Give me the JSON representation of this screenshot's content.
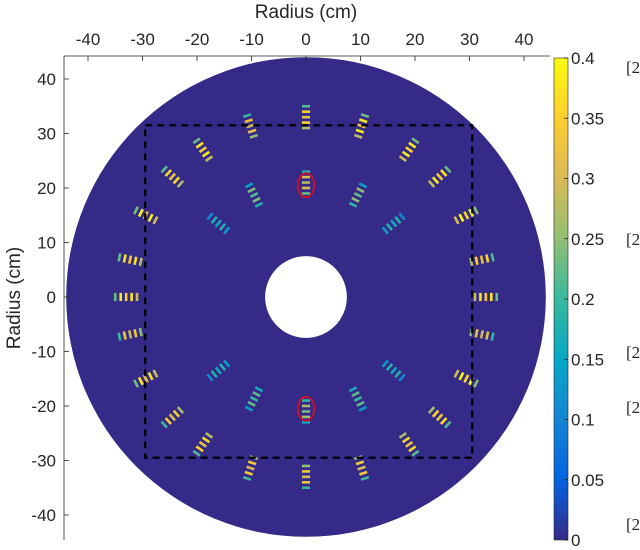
{
  "chart_data": {
    "type": "heatmap",
    "title": "",
    "xlabel": "Radius (cm)",
    "ylabel": "Radius (cm)",
    "xlim": [
      -44,
      44
    ],
    "ylim": [
      -45,
      45
    ],
    "x_ticks": [
      -40,
      -30,
      -20,
      -10,
      0,
      10,
      20,
      30,
      40
    ],
    "x_tick_labels": [
      "-40",
      "-30",
      "-20",
      "-10",
      "0",
      "10",
      "20",
      "30",
      "40"
    ],
    "y_ticks": [
      40,
      30,
      20,
      10,
      0,
      -10,
      -20,
      -30,
      -40
    ],
    "y_tick_labels": [
      "40",
      "30",
      "20",
      "10",
      "0",
      "-10",
      "-20",
      "-30",
      "-40"
    ],
    "x_axis_location": "top",
    "grid": false,
    "disk": {
      "outer_radius_cm": 44,
      "inner_radius_cm": 7.5,
      "background_value": 0
    },
    "dashed_square": {
      "x": [
        -29.5,
        30.5
      ],
      "y": [
        -29.5,
        31.5
      ]
    },
    "highlight_ellipses": [
      {
        "cx": 0,
        "cy": 20.5,
        "rx": 1.5,
        "ry": 2.2,
        "color": "#c8102e"
      },
      {
        "cx": 0,
        "cy": -20.5,
        "rx": 1.5,
        "ry": 2.2,
        "color": "#c8102e"
      }
    ],
    "colorbar": {
      "colormap": "parula",
      "min": 0,
      "max": 0.4,
      "ticks": [
        0,
        0.05,
        0.1,
        0.15,
        0.2,
        0.25,
        0.3,
        0.35,
        0.4
      ],
      "tick_labels": [
        "0",
        "0.05",
        "0.1",
        "0.15",
        "0.2",
        "0.25",
        "0.3",
        "0.35",
        "0.4"
      ],
      "colors": [
        "#352a87",
        "#0363e1",
        "#1485d4",
        "#06a7c6",
        "#38b99e",
        "#92bf73",
        "#d9ba56",
        "#fcce2e",
        "#f9fb0e"
      ]
    },
    "side_annotations": [
      "[2",
      "[2",
      "[2",
      "[2",
      "[2"
    ],
    "hotspots": [
      {
        "angle_deg": 90,
        "r": 33,
        "value": 0.35
      },
      {
        "angle_deg": 90,
        "r": 21,
        "value": 0.3
      },
      {
        "angle_deg": 72,
        "r": 33,
        "value": 0.38
      },
      {
        "angle_deg": 63,
        "r": 21,
        "value": 0.25
      },
      {
        "angle_deg": 55,
        "r": 33,
        "value": 0.39
      },
      {
        "angle_deg": 42,
        "r": 33,
        "value": 0.38
      },
      {
        "angle_deg": 27,
        "r": 33,
        "value": 0.4
      },
      {
        "angle_deg": 12,
        "r": 33,
        "value": 0.35
      },
      {
        "angle_deg": 0,
        "r": 33,
        "value": 0.38
      },
      {
        "angle_deg": -12,
        "r": 33,
        "value": 0.32
      },
      {
        "angle_deg": -27,
        "r": 33,
        "value": 0.4
      },
      {
        "angle_deg": -42,
        "r": 33,
        "value": 0.36
      },
      {
        "angle_deg": -55,
        "r": 33,
        "value": 0.36
      },
      {
        "angle_deg": -63,
        "r": 21,
        "value": 0.22
      },
      {
        "angle_deg": -72,
        "r": 33,
        "value": 0.34
      },
      {
        "angle_deg": -90,
        "r": 33,
        "value": 0.33
      },
      {
        "angle_deg": -90,
        "r": 21,
        "value": 0.26
      },
      {
        "angle_deg": -108,
        "r": 33,
        "value": 0.34
      },
      {
        "angle_deg": -117,
        "r": 21,
        "value": 0.22
      },
      {
        "angle_deg": -125,
        "r": 33,
        "value": 0.36
      },
      {
        "angle_deg": -138,
        "r": 33,
        "value": 0.34
      },
      {
        "angle_deg": -153,
        "r": 33,
        "value": 0.38
      },
      {
        "angle_deg": -168,
        "r": 33,
        "value": 0.33
      },
      {
        "angle_deg": 180,
        "r": 33,
        "value": 0.38
      },
      {
        "angle_deg": 168,
        "r": 33,
        "value": 0.37
      },
      {
        "angle_deg": 153,
        "r": 33,
        "value": 0.39
      },
      {
        "angle_deg": 138,
        "r": 33,
        "value": 0.36
      },
      {
        "angle_deg": 125,
        "r": 33,
        "value": 0.38
      },
      {
        "angle_deg": 117,
        "r": 21,
        "value": 0.24
      },
      {
        "angle_deg": 108,
        "r": 33,
        "value": 0.33
      },
      {
        "angle_deg": 140,
        "r": 21,
        "value": 0.18
      },
      {
        "angle_deg": 40,
        "r": 21,
        "value": 0.18
      },
      {
        "angle_deg": -40,
        "r": 21,
        "value": 0.18
      },
      {
        "angle_deg": -140,
        "r": 21,
        "value": 0.18
      }
    ]
  }
}
